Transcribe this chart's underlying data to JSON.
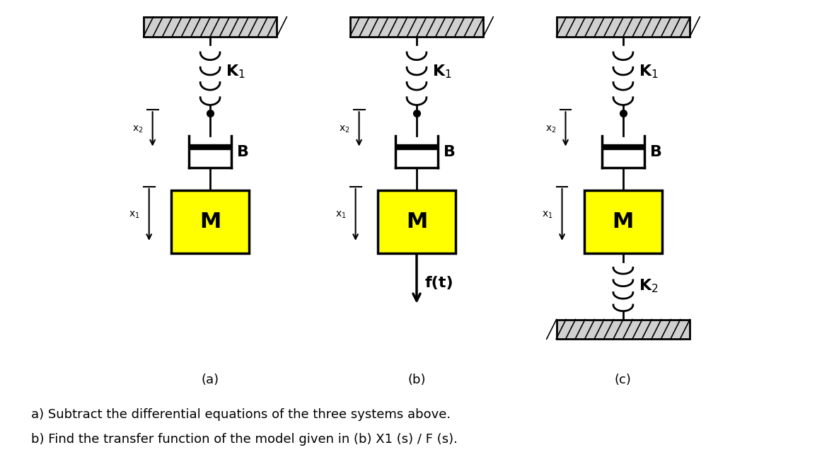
{
  "bg_color": "#ffffff",
  "mass_color": "#ffff00",
  "text_color": "#000000",
  "label_K1": "K$_1$",
  "label_K2": "K$_2$",
  "label_B": "B",
  "label_M": "M",
  "label_x1": "x$_1$",
  "label_x2": "x$_2$",
  "label_ft": "f(t)",
  "title_a": "(a)",
  "title_b": "(b)",
  "title_c": "(c)",
  "caption_a": "a) Subtract the differential equations of the three systems above.",
  "caption_b": "b) Find the transfer function of the model given in (b) X1 (s) / F (s).",
  "figsize": [
    11.79,
    6.7
  ],
  "dpi": 100
}
